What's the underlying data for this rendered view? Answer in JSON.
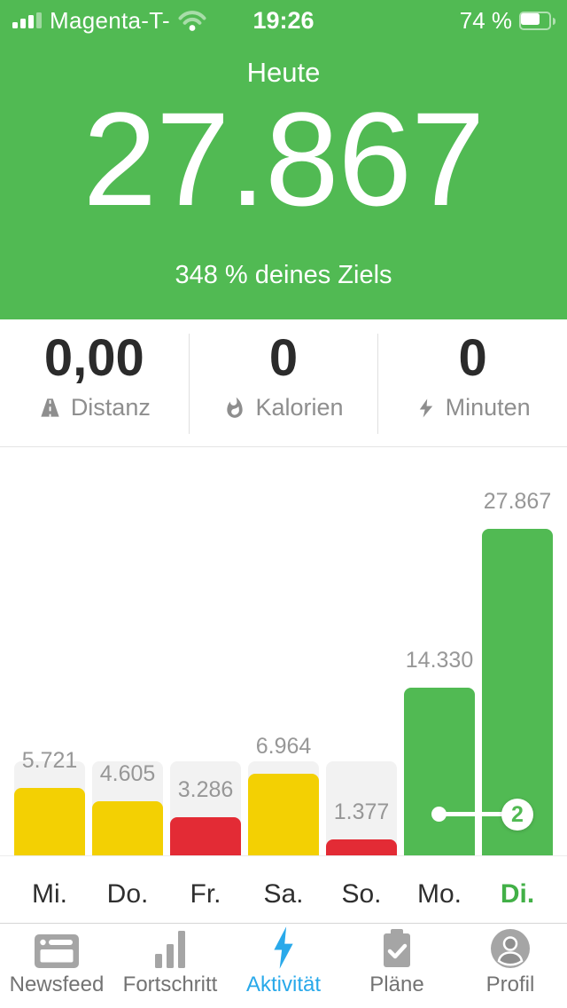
{
  "status_bar": {
    "carrier": "Magenta-T-",
    "time": "19:26",
    "battery_percent": "74 %",
    "battery_level": 0.74,
    "icons": [
      "cell-signal-icon",
      "wifi-icon",
      "battery-icon"
    ]
  },
  "header": {
    "title": "Heute",
    "steps_value": "27.867",
    "goal_text": "348 % deines Ziels",
    "background_color": "#51BA53",
    "text_color": "#ffffff"
  },
  "stats": {
    "items": [
      {
        "value": "0,00",
        "label": "Distanz",
        "icon": "road-icon"
      },
      {
        "value": "0",
        "label": "Kalorien",
        "icon": "flame-icon"
      },
      {
        "value": "0",
        "label": "Minuten",
        "icon": "bolt-icon"
      }
    ]
  },
  "chart_data": {
    "type": "bar",
    "title": "",
    "xlabel": "",
    "ylabel": "",
    "categories": [
      "Mi.",
      "Do.",
      "Fr.",
      "Sa.",
      "So.",
      "Mo.",
      "Di."
    ],
    "values": [
      5721,
      4605,
      3286,
      6964,
      1377,
      14330,
      27867
    ],
    "value_labels": [
      "5.721",
      "4.605",
      "3.286",
      "6.964",
      "1.377",
      "14.330",
      "27.867"
    ],
    "bar_colors": [
      "#F3D003",
      "#F3D003",
      "#E32B35",
      "#F3D003",
      "#E32B35",
      "#51BA53",
      "#51BA53"
    ],
    "goal_value": 8000,
    "track_color": "#F2F2F2",
    "ylim": [
      0,
      27867
    ],
    "grid": false,
    "legend": false,
    "active_category": "Di.",
    "active_category_index": 6,
    "active_color": "#42B047",
    "annotation": {
      "label": "2",
      "from_category": "Mo.",
      "to_category": "Di."
    }
  },
  "tab_bar": {
    "active": "Aktivität",
    "active_color": "#29A9EA",
    "items": [
      {
        "label": "Newsfeed",
        "icon": "newsfeed-icon",
        "active": false
      },
      {
        "label": "Fortschritt",
        "icon": "bar-chart-icon",
        "active": false
      },
      {
        "label": "Aktivität",
        "icon": "bolt-icon",
        "active": true
      },
      {
        "label": "Pläne",
        "icon": "clipboard-icon",
        "active": false
      },
      {
        "label": "Profil",
        "icon": "profile-icon",
        "active": false
      }
    ]
  },
  "colors": {
    "green": "#51BA53",
    "yellow": "#F3D003",
    "red": "#E32B35",
    "track_gray": "#F2F2F2",
    "tab_blue": "#29A9EA",
    "icon_gray": "#A5A5A5"
  }
}
